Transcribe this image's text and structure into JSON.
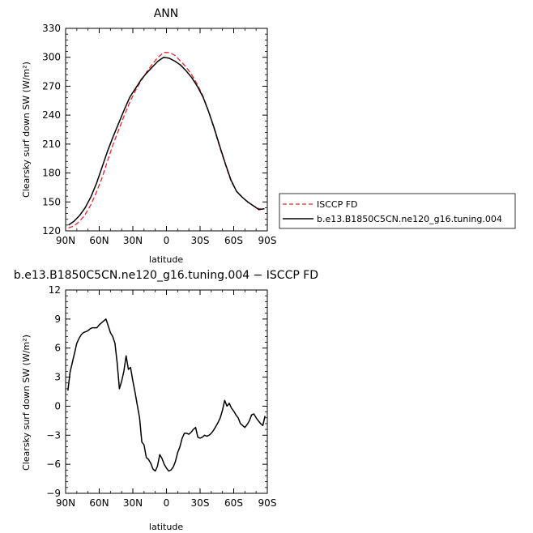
{
  "chart_data": [
    {
      "type": "line",
      "title": "ANN",
      "xlabel": "latitude",
      "ylabel": "Clearsky surf down SW (W/m²)",
      "xlim": [
        90,
        -90
      ],
      "ylim": [
        120,
        330
      ],
      "x_ticks": [
        90,
        60,
        30,
        0,
        -30,
        -60,
        -90
      ],
      "x_tick_labels": [
        "90N",
        "60N",
        "30N",
        "0",
        "30S",
        "60S",
        "90S"
      ],
      "y_ticks": [
        120,
        150,
        180,
        210,
        240,
        270,
        300,
        330
      ],
      "y_tick_labels": [
        "120",
        "150",
        "180",
        "210",
        "240",
        "270",
        "300",
        "330"
      ],
      "grid": false,
      "legend": {
        "position": "right",
        "entries": [
          "ISCCP FD",
          "b.e13.B1850C5CN.ne120_g16.tuning.004"
        ]
      },
      "series": [
        {
          "name": "ISCCP FD",
          "color": "#e8262a",
          "dash": true,
          "x": [
            87.5,
            82.5,
            77.5,
            72.5,
            67.5,
            62.5,
            57.5,
            52.5,
            47.5,
            42.5,
            37.5,
            32.5,
            27.5,
            22.5,
            17.5,
            12.5,
            7.5,
            2.5,
            -2.5,
            -7.5,
            -12.5,
            -17.5,
            -22.5,
            -27.5,
            -32.5,
            -37.5,
            -42.5,
            -47.5,
            -52.5,
            -57.5,
            -62.5,
            -67.5,
            -72.5,
            -77.5,
            -82.5,
            -87.5
          ],
          "y": [
            123,
            125,
            130,
            137,
            147,
            160,
            175,
            193,
            210,
            225,
            240,
            254,
            266,
            276,
            285,
            293,
            300,
            305,
            305,
            302,
            296,
            290,
            282,
            272,
            260,
            244,
            226,
            207,
            189,
            172,
            161,
            155,
            150,
            146,
            143,
            142
          ]
        },
        {
          "name": "b.e13.B1850C5CN.ne120_g16.tuning.004",
          "color": "#000000",
          "dash": false,
          "x": [
            87.5,
            82.5,
            77.5,
            72.5,
            67.5,
            62.5,
            57.5,
            52.5,
            47.5,
            42.5,
            37.5,
            32.5,
            27.5,
            22.5,
            17.5,
            12.5,
            7.5,
            2.5,
            -2.5,
            -7.5,
            -12.5,
            -17.5,
            -22.5,
            -27.5,
            -32.5,
            -37.5,
            -42.5,
            -47.5,
            -52.5,
            -57.5,
            -62.5,
            -67.5,
            -72.5,
            -77.5,
            -82.5,
            -87.5
          ],
          "y": [
            126,
            130,
            136,
            144,
            155,
            169,
            186,
            203,
            218,
            232,
            246,
            259,
            268,
            277,
            284,
            290,
            296,
            300,
            299,
            296,
            292,
            286,
            279,
            270,
            259,
            244,
            227,
            208,
            190,
            173,
            161,
            155,
            150,
            146,
            142,
            143
          ]
        }
      ]
    },
    {
      "type": "line",
      "title": "b.e13.B1850C5CN.ne120_g16.tuning.004 − ISCCP FD",
      "xlabel": "latitude",
      "ylabel": "Clearsky surf down SW (W/m²)",
      "xlim": [
        90,
        -90
      ],
      "ylim": [
        -9,
        12
      ],
      "x_ticks": [
        90,
        60,
        30,
        0,
        -30,
        -60,
        -90
      ],
      "x_tick_labels": [
        "90N",
        "60N",
        "30N",
        "0",
        "30S",
        "60S",
        "90S"
      ],
      "y_ticks": [
        -9,
        -6,
        -3,
        0,
        3,
        6,
        9,
        12
      ],
      "y_tick_labels": [
        "−9",
        "−6",
        "−3",
        "0",
        "3",
        "6",
        "9",
        "12"
      ],
      "grid": false,
      "series": [
        {
          "color": "#000000",
          "dash": false,
          "x": [
            88,
            86,
            84,
            82,
            80,
            78,
            76,
            74,
            72,
            70,
            68,
            66,
            64,
            62,
            60,
            58,
            56,
            54,
            52,
            50,
            48,
            46,
            44,
            42,
            40,
            38,
            36,
            34,
            32,
            30,
            28,
            26,
            24,
            22,
            20,
            18,
            16,
            14,
            12,
            10,
            8,
            6,
            4,
            2,
            0,
            -2,
            -4,
            -6,
            -8,
            -10,
            -12,
            -14,
            -16,
            -18,
            -20,
            -22,
            -24,
            -26,
            -28,
            -30,
            -32,
            -34,
            -36,
            -38,
            -40,
            -42,
            -44,
            -46,
            -48,
            -50,
            -52,
            -54,
            -56,
            -58,
            -60,
            -62,
            -64,
            -66,
            -68,
            -70,
            -72,
            -74,
            -76,
            -78,
            -80,
            -82,
            -84,
            -86,
            -88
          ],
          "y": [
            1.6,
            3.5,
            4.5,
            5.5,
            6.5,
            7.0,
            7.4,
            7.6,
            7.7,
            7.8,
            8.0,
            8.1,
            8.1,
            8.1,
            8.4,
            8.6,
            8.8,
            9.0,
            8.3,
            7.6,
            7.2,
            6.5,
            4.5,
            1.8,
            2.6,
            3.6,
            5.2,
            3.8,
            4.0,
            2.6,
            1.4,
            0.1,
            -1.2,
            -3.7,
            -4.0,
            -5.3,
            -5.5,
            -5.9,
            -6.5,
            -6.7,
            -6.2,
            -5.0,
            -5.4,
            -6.0,
            -6.4,
            -6.7,
            -6.6,
            -6.3,
            -5.7,
            -4.8,
            -4.2,
            -3.3,
            -2.8,
            -2.8,
            -2.9,
            -2.7,
            -2.4,
            -2.2,
            -3.2,
            -3.3,
            -3.2,
            -3.0,
            -3.1,
            -3.0,
            -2.8,
            -2.5,
            -2.1,
            -1.7,
            -1.2,
            -0.4,
            0.6,
            0.0,
            0.3,
            -0.2,
            -0.5,
            -0.9,
            -1.2,
            -1.8,
            -2.0,
            -2.2,
            -1.9,
            -1.5,
            -0.9,
            -0.8,
            -1.2,
            -1.5,
            -1.8,
            -2.0,
            -1.0
          ]
        }
      ]
    }
  ]
}
